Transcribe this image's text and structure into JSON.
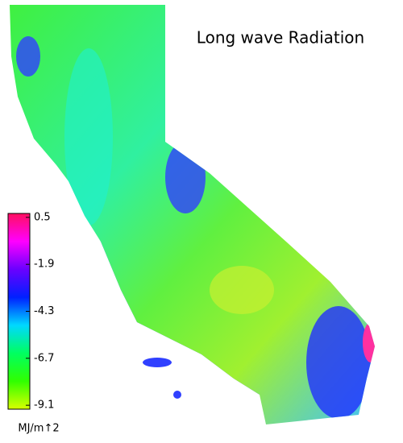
{
  "title": "Long wave Radiation",
  "colorbar": {
    "lim": [
      -9.3,
      0.7
    ],
    "ticks": [
      0.5,
      -1.9,
      -4.3,
      -6.7,
      -9.1
    ],
    "unit": "MJ/m↑2",
    "colors": [
      "#ff1060",
      "#ff00ff",
      "#6a00ff",
      "#0020ff",
      "#00d8ff",
      "#00ff60",
      "#30ff00",
      "#d8ff00"
    ]
  }
}
